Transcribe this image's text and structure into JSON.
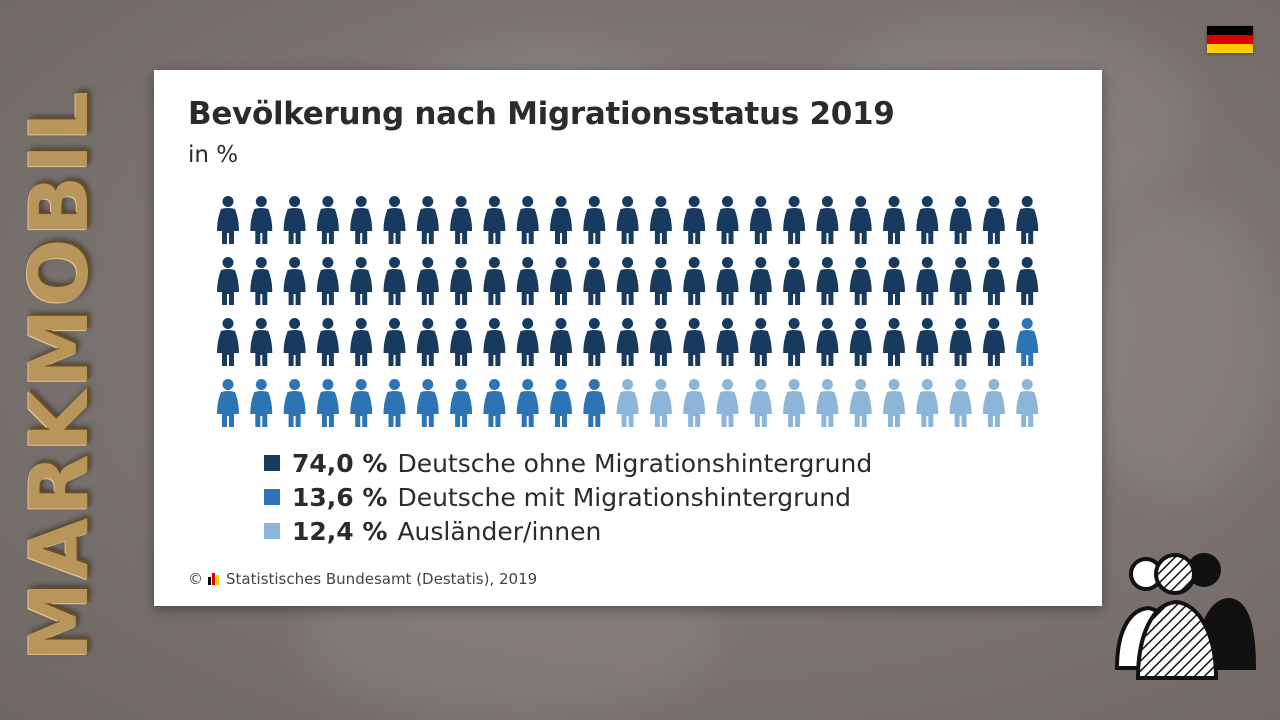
{
  "watermark": {
    "text": "MARKMOBIL"
  },
  "flag": {
    "colors": [
      "#000000",
      "#dd0000",
      "#ffce00"
    ],
    "icon": "germany-flag-icon"
  },
  "chart_data": {
    "type": "pictogram",
    "title": "Bevölkerung nach Migrationsstatus 2019",
    "subtitle": "in %",
    "total_figures": 100,
    "columns": 25,
    "rows": 4,
    "figure_counts": [
      74,
      13,
      13
    ],
    "series": [
      {
        "name": "Deutsche ohne Migrationshintergrund",
        "value": 74.0,
        "value_label": "74,0 %",
        "color": "#173a5e"
      },
      {
        "name": "Deutsche mit Migrationshintergrund",
        "value": 13.6,
        "value_label": "13,6 %",
        "color": "#2d74b6"
      },
      {
        "name": "Ausländer/innen",
        "value": 12.4,
        "value_label": "12,4 %",
        "color": "#8cb6d9"
      }
    ],
    "source": "© ",
    "source_text": "Statistisches Bundesamt (Destatis), 2019",
    "source_logo_colors": [
      "#000000",
      "#dd0000",
      "#ffce00"
    ]
  },
  "decorative_icon": {
    "name": "people-group-icon"
  }
}
